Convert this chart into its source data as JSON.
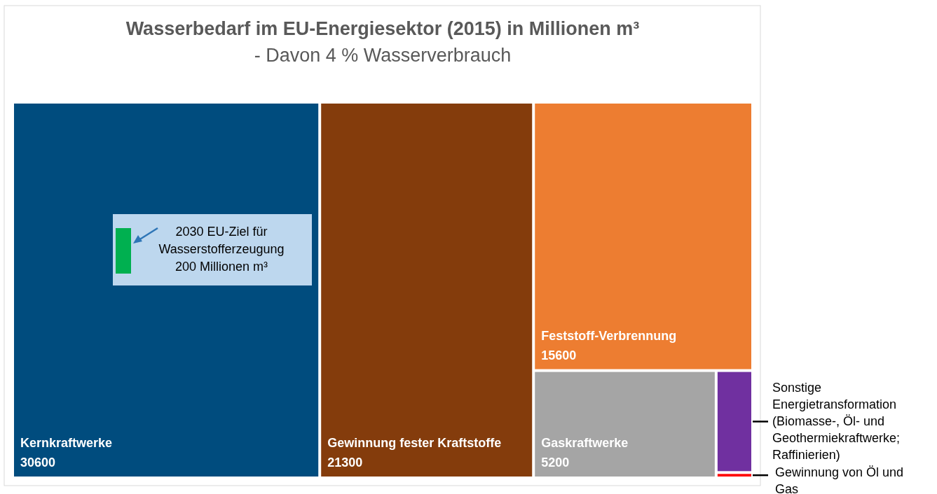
{
  "chart_data": {
    "type": "other",
    "title": "Wasserbedarf im EU-Energiesektor (2015) in Millionen m³",
    "subtitle": "- Davon 4 % Wasserverbrauch",
    "categories": [
      "Kernkraftwerke",
      "Gewinnung fester Kraftstoffe",
      "Feststoff-Verbrennung",
      "Gaskraftwerke",
      "Sonstige\nEnergietransformation\n(Biomasse-, Öl- und\nGeothermiekraftwerke;\nRaffinierien)",
      "Gewinnung von Öl und\nGas"
    ],
    "values": [
      30600,
      21300,
      15600,
      5200,
      null,
      null
    ],
    "value_labels": [
      "30600",
      "21300",
      "15600",
      "5200",
      null,
      null
    ],
    "colors": [
      "#004c7e",
      "#843c0c",
      "#ed7d31",
      "#a5a5a5",
      "#7030a0",
      "#ff0000"
    ],
    "annotations": [
      "2030 EU-Ziel für\nWasserstofferzeugung\n200 Millionen m³"
    ]
  }
}
